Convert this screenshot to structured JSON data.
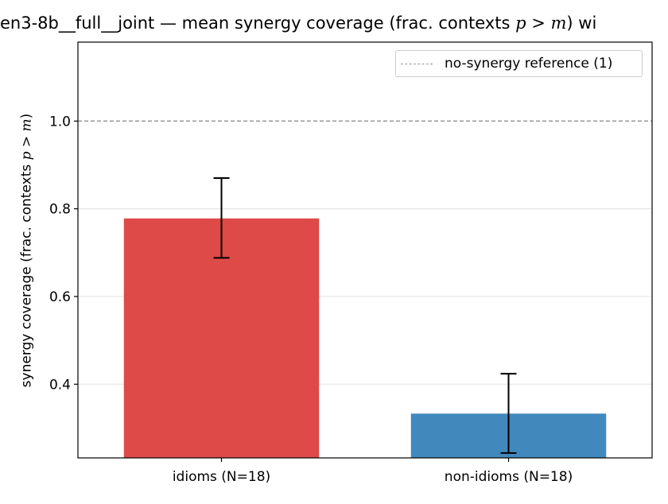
{
  "chart_data": {
    "type": "bar",
    "title_prefix": "en3-8b__full__joint — mean synergy coverage  (frac. contexts ",
    "title_math": "p > m",
    "title_suffix": ") wi",
    "ylabel_prefix": "synergy coverage  (frac. contexts ",
    "ylabel_math": "p > m",
    "ylabel_suffix": ")",
    "categories": [
      "idioms (N=18)",
      "non-idioms (N=18)"
    ],
    "values": [
      0.778,
      0.333
    ],
    "errors": [
      [
        0.688,
        0.87
      ],
      [
        0.243,
        0.424
      ]
    ],
    "colors": [
      "#dd4a48",
      "#4189bd"
    ],
    "ylim": [
      0.232,
      1.18
    ],
    "yticks": [
      0.4,
      0.6,
      0.8,
      1.0
    ],
    "ytick_labels": [
      "0.4",
      "0.6",
      "0.8",
      "1.0"
    ],
    "reference_line": {
      "y": 1.0,
      "label": "no-synergy reference (1)",
      "color": "#999999"
    },
    "grid": "horizontal",
    "legend_position": "top-right"
  }
}
